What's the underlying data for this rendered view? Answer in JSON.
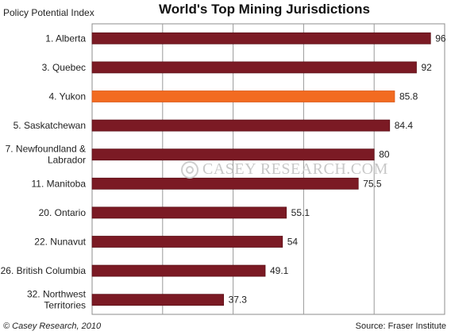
{
  "chart_data": {
    "type": "bar",
    "orientation": "horizontal",
    "title": "World's Top Mining Jurisdictions",
    "ylabel": "Policy Potential Index",
    "xlabel": "",
    "categories": [
      "1. Alberta",
      "3. Quebec",
      "4. Yukon",
      "5. Saskatchewan",
      "7. Newfoundland & Labrador",
      "11. Manitoba",
      "20. Ontario",
      "22. Nunavut",
      "26. British Columbia",
      "32. Northwest Territories"
    ],
    "values": [
      96,
      92,
      85.8,
      84.4,
      80,
      75.5,
      55.1,
      54,
      49.1,
      37.3
    ],
    "value_labels": [
      "96",
      "92",
      "85.8",
      "84.4",
      "80",
      "75.5",
      "55.1",
      "54",
      "49.1",
      "37.3"
    ],
    "xlim": [
      0,
      100
    ],
    "grid": true,
    "colors": {
      "bar": "#7b1a24",
      "highlight": "#f26b21",
      "grid": "#9a9a9a"
    },
    "highlight_index": 2
  },
  "footer": {
    "copyright": "© Casey Research, 2010",
    "source": "Source: Fraser Institute"
  },
  "watermark": "CASEY RESEARCH.COM"
}
